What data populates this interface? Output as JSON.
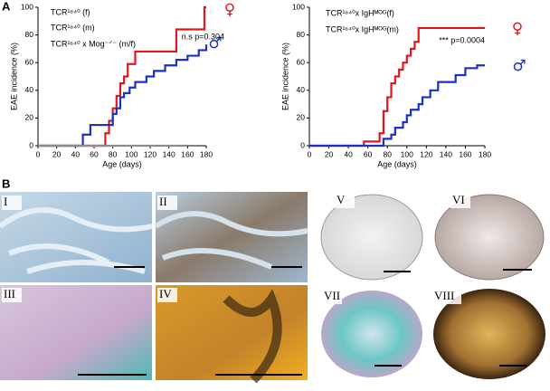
{
  "figure": {
    "panel_a_label": "A",
    "panel_b_label": "B"
  },
  "chart_data": [
    {
      "type": "line",
      "step": true,
      "xlabel": "Age (days)",
      "ylabel": "EAE incidence (%)",
      "xlim": [
        0,
        180
      ],
      "ylim": [
        0,
        100
      ],
      "xticks": [
        0,
        20,
        40,
        60,
        80,
        100,
        120,
        140,
        160,
        180
      ],
      "yticks": [
        0,
        20,
        40,
        60,
        80,
        100
      ],
      "legend": "upper left",
      "series": [
        {
          "name": "TCR¹⁶⁴⁰ (f)",
          "color": "#e3161d",
          "symbol": "♀",
          "x": [
            0,
            72,
            76,
            80,
            84,
            88,
            92,
            96,
            104,
            148,
            178,
            180
          ],
          "values": [
            0,
            9,
            18,
            27,
            36,
            45,
            50,
            59,
            68,
            84,
            100,
            100
          ]
        },
        {
          "name": "TCR¹⁶⁴⁰ (m)",
          "color": "#1d2fc4",
          "symbol": "♂",
          "x": [
            0,
            48,
            56,
            72,
            80,
            84,
            88,
            92,
            98,
            104,
            116,
            124,
            136,
            148,
            160,
            172,
            180
          ],
          "values": [
            0,
            8,
            15,
            15,
            23,
            27,
            35,
            38,
            42,
            46,
            50,
            54,
            58,
            62,
            65,
            69,
            73
          ]
        },
        {
          "name": "TCR¹⁶⁴⁰ x Mog⁻ᐟ⁻ (m/f)",
          "color": "#8c8c8c",
          "x": [
            0,
            160
          ],
          "values": [
            0,
            0
          ]
        }
      ],
      "annotations": [
        "n.s p=0.304"
      ]
    },
    {
      "type": "line",
      "step": true,
      "xlabel": "Age (days)",
      "ylabel": "EAE incidence (%)",
      "xlim": [
        0,
        180
      ],
      "ylim": [
        0,
        100
      ],
      "xticks": [
        0,
        20,
        40,
        60,
        80,
        100,
        120,
        140,
        160,
        180
      ],
      "yticks": [
        0,
        20,
        40,
        60,
        80,
        100
      ],
      "legend": "upper left",
      "series": [
        {
          "name": "TCR¹⁶⁴⁰x IgHᴹᴼᴳ(f)",
          "color": "#e3161d",
          "symbol": "♀",
          "x": [
            0,
            56,
            72,
            76,
            80,
            84,
            88,
            92,
            96,
            100,
            104,
            108,
            112,
            180
          ],
          "values": [
            0,
            3,
            9,
            25,
            35,
            45,
            50,
            55,
            60,
            65,
            70,
            75,
            85,
            85
          ]
        },
        {
          "name": "TCR¹⁶⁴⁰x IgHᴹᴼᴳ(m)",
          "color": "#1d2fc4",
          "symbol": "♂",
          "x": [
            0,
            76,
            84,
            88,
            96,
            100,
            104,
            112,
            116,
            124,
            132,
            150,
            160,
            172,
            180
          ],
          "values": [
            0,
            5,
            8,
            13,
            17,
            22,
            26,
            30,
            35,
            40,
            46,
            51,
            56,
            58,
            58
          ]
        }
      ],
      "annotations": [
        "*** p=0.0004"
      ]
    }
  ],
  "panel_b": {
    "images": [
      "I",
      "II",
      "III",
      "IV",
      "V",
      "VI",
      "VII",
      "VIII"
    ]
  }
}
